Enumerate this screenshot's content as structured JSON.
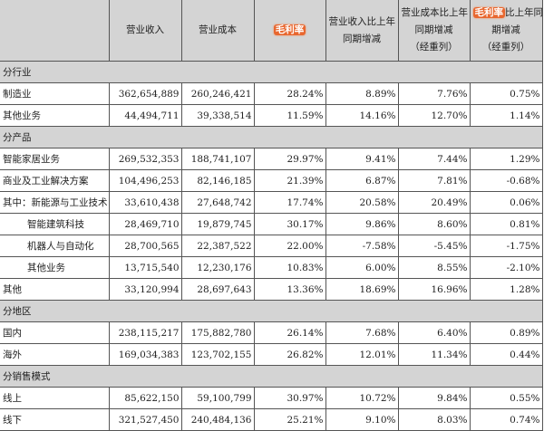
{
  "highlight_color": "#e8672f",
  "header": {
    "col0": "",
    "col1": "营业收入",
    "col2": "营业成本",
    "col3_highlight": "毛利率",
    "col4_line1": "营业收入比上年",
    "col4_line2": "同期增减",
    "col5_line1": "营业成本比上年",
    "col5_line2": "同期增减",
    "col5_line3": "（经重列）",
    "col6_highlight": "毛利率",
    "col6_line1_rest": "比上年同",
    "col6_line2": "期增减",
    "col6_line3": "（经重列）"
  },
  "sections": [
    {
      "title": "分行业",
      "rows": [
        {
          "label": "制造业",
          "revenue": "362,654,889",
          "cost": "260,246,421",
          "margin": "28.24%",
          "rev_change": "8.89%",
          "cost_change": "7.76%",
          "margin_change": "0.75%"
        },
        {
          "label": "其他业务",
          "revenue": "44,494,711",
          "cost": "39,338,514",
          "margin": "11.59%",
          "rev_change": "14.16%",
          "cost_change": "12.70%",
          "margin_change": "1.14%"
        }
      ]
    },
    {
      "title": "分产品",
      "rows": [
        {
          "label": "智能家居业务",
          "revenue": "269,532,353",
          "cost": "188,741,107",
          "margin": "29.97%",
          "rev_change": "9.41%",
          "cost_change": "7.44%",
          "margin_change": "1.29%"
        },
        {
          "label": "商业及工业解决方案",
          "revenue": "104,496,253",
          "cost": "82,146,185",
          "margin": "21.39%",
          "rev_change": "6.87%",
          "cost_change": "7.81%",
          "margin_change": "-0.68%"
        },
        {
          "label": "其中：新能源与工业技术",
          "revenue": "33,610,438",
          "cost": "27,648,742",
          "margin": "17.74%",
          "rev_change": "20.58%",
          "cost_change": "20.49%",
          "margin_change": "0.06%"
        },
        {
          "label": "智能建筑科技",
          "indent": true,
          "revenue": "28,469,710",
          "cost": "19,879,745",
          "margin": "30.17%",
          "rev_change": "9.86%",
          "cost_change": "8.60%",
          "margin_change": "0.81%"
        },
        {
          "label": "机器人与自动化",
          "indent": true,
          "revenue": "28,700,565",
          "cost": "22,387,522",
          "margin": "22.00%",
          "rev_change": "-7.58%",
          "cost_change": "-5.45%",
          "margin_change": "-1.75%"
        },
        {
          "label": "其他业务",
          "indent": true,
          "revenue": "13,715,540",
          "cost": "12,230,176",
          "margin": "10.83%",
          "rev_change": "6.00%",
          "cost_change": "8.55%",
          "margin_change": "-2.10%"
        },
        {
          "label": "其他",
          "revenue": "33,120,994",
          "cost": "28,697,643",
          "margin": "13.36%",
          "rev_change": "18.69%",
          "cost_change": "16.96%",
          "margin_change": "1.28%"
        }
      ]
    },
    {
      "title": "分地区",
      "rows": [
        {
          "label": "国内",
          "revenue": "238,115,217",
          "cost": "175,882,780",
          "margin": "26.14%",
          "rev_change": "7.68%",
          "cost_change": "6.40%",
          "margin_change": "0.89%"
        },
        {
          "label": "海外",
          "revenue": "169,034,383",
          "cost": "123,702,155",
          "margin": "26.82%",
          "rev_change": "12.01%",
          "cost_change": "11.34%",
          "margin_change": "0.44%"
        }
      ]
    },
    {
      "title": "分销售模式",
      "rows": [
        {
          "label": "线上",
          "revenue": "85,622,150",
          "cost": "59,100,799",
          "margin": "30.97%",
          "rev_change": "10.72%",
          "cost_change": "9.84%",
          "margin_change": "0.55%"
        },
        {
          "label": "线下",
          "revenue": "321,527,450",
          "cost": "240,484,136",
          "margin": "25.21%",
          "rev_change": "9.10%",
          "cost_change": "8.03%",
          "margin_change": "0.74%"
        }
      ]
    }
  ]
}
